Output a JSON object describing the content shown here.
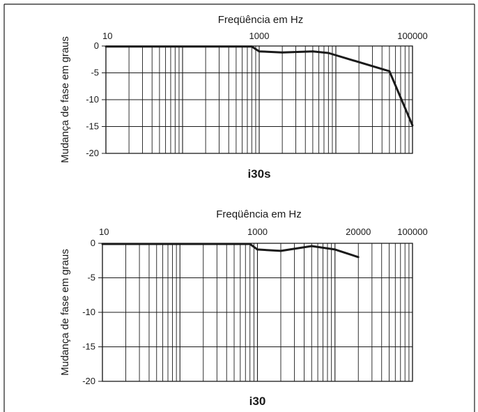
{
  "chart_data": [
    {
      "type": "line",
      "title": "i30s",
      "xlabel": "Freqüência em Hz",
      "ylabel": "Mudança de fase em graus",
      "x_scale": "log",
      "xlim": [
        10,
        100000
      ],
      "ylim": [
        -20,
        0
      ],
      "x_tick_labels": [
        "10",
        "1000",
        "100000"
      ],
      "y_ticks": [
        0,
        -5,
        -10,
        -15,
        -20
      ],
      "y_tick_labels": [
        "0",
        "-5",
        "-10",
        "-15",
        "-20"
      ],
      "grid": true,
      "series": [
        {
          "x": [
            10,
            500,
            800,
            1000,
            2000,
            5000,
            8000,
            50000,
            100000
          ],
          "y": [
            -0.1,
            -0.1,
            -0.1,
            -1.0,
            -1.2,
            -1.0,
            -1.3,
            -4.7,
            -14.8
          ]
        }
      ]
    },
    {
      "type": "line",
      "title": "i30",
      "xlabel": "Freqüência em Hz",
      "ylabel": "Mudança de fase em graus",
      "x_scale": "log",
      "xlim": [
        10,
        100000
      ],
      "ylim": [
        -20,
        0
      ],
      "x_tick_labels": [
        "10",
        "1000",
        "20000",
        "100000"
      ],
      "y_ticks": [
        0,
        -5,
        -10,
        -15,
        -20
      ],
      "y_tick_labels": [
        "0",
        "-5",
        "-10",
        "-15",
        "-20"
      ],
      "grid": true,
      "series": [
        {
          "x": [
            10,
            500,
            800,
            1000,
            2000,
            5000,
            10000,
            20000
          ],
          "y": [
            -0.1,
            -0.1,
            -0.1,
            -0.9,
            -1.1,
            -0.4,
            -0.9,
            -2.0
          ]
        }
      ]
    }
  ],
  "colors": {
    "line": "#1a1a1a",
    "grid": "#1a1a1a",
    "frame": "#1a1a1a"
  }
}
